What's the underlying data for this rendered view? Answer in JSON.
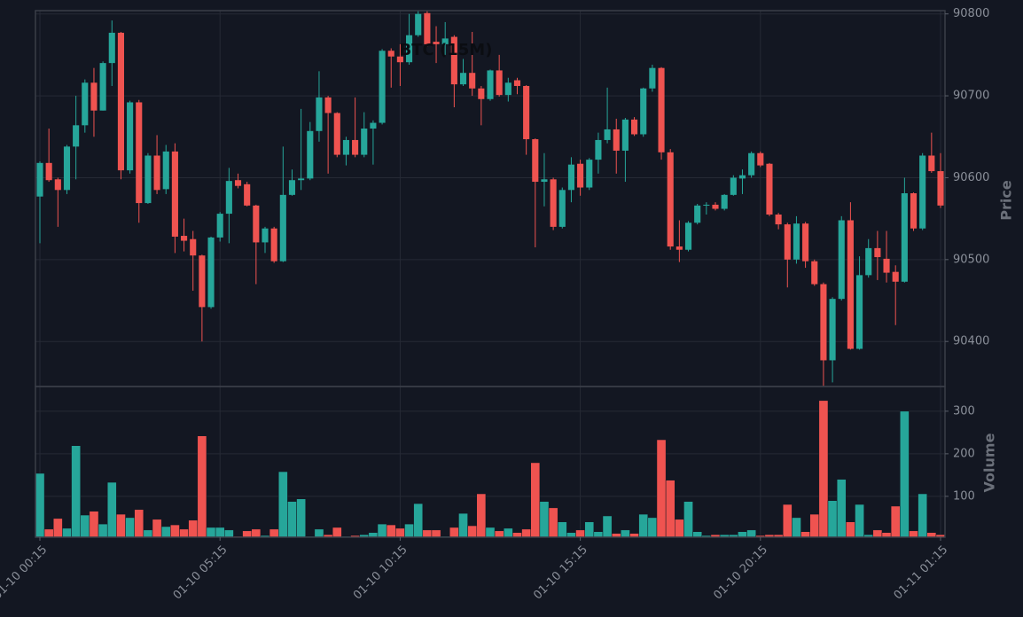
{
  "chart_data": {
    "type": "candlestick",
    "title": "BTC (15M)",
    "x": [
      "01-10 00:15",
      "01-10 00:30",
      "01-10 00:45",
      "01-10 01:00",
      "01-10 01:15",
      "01-10 01:30",
      "01-10 01:45",
      "01-10 02:00",
      "01-10 02:15",
      "01-10 02:30",
      "01-10 02:45",
      "01-10 03:00",
      "01-10 03:15",
      "01-10 03:30",
      "01-10 03:45",
      "01-10 04:00",
      "01-10 04:15",
      "01-10 04:30",
      "01-10 04:45",
      "01-10 05:00",
      "01-10 05:15",
      "01-10 05:30",
      "01-10 05:45",
      "01-10 06:00",
      "01-10 06:15",
      "01-10 06:30",
      "01-10 06:45",
      "01-10 07:00",
      "01-10 07:15",
      "01-10 07:30",
      "01-10 07:45",
      "01-10 08:00",
      "01-10 08:15",
      "01-10 08:30",
      "01-10 08:45",
      "01-10 09:00",
      "01-10 09:15",
      "01-10 09:30",
      "01-10 09:45",
      "01-10 10:00",
      "01-10 10:15",
      "01-10 10:30",
      "01-10 10:45",
      "01-10 11:00",
      "01-10 11:15",
      "01-10 11:30",
      "01-10 11:45",
      "01-10 12:00",
      "01-10 12:15",
      "01-10 12:30",
      "01-10 12:45",
      "01-10 13:00",
      "01-10 13:15",
      "01-10 13:30",
      "01-10 13:45",
      "01-10 14:00",
      "01-10 14:15",
      "01-10 14:30",
      "01-10 14:45",
      "01-10 15:00",
      "01-10 15:15",
      "01-10 15:30",
      "01-10 15:45",
      "01-10 16:00",
      "01-10 16:15",
      "01-10 16:30",
      "01-10 16:45",
      "01-10 17:00",
      "01-10 17:15",
      "01-10 17:30",
      "01-10 17:45",
      "01-10 18:00",
      "01-10 18:15",
      "01-10 18:30",
      "01-10 18:45",
      "01-10 19:00",
      "01-10 19:15",
      "01-10 19:30",
      "01-10 19:45",
      "01-10 20:00",
      "01-10 20:15",
      "01-10 20:30",
      "01-10 20:45",
      "01-10 21:00",
      "01-10 21:15",
      "01-10 21:30",
      "01-10 21:45",
      "01-10 22:00",
      "01-10 22:15",
      "01-10 22:30",
      "01-10 22:45",
      "01-10 23:00",
      "01-10 23:15",
      "01-10 23:30",
      "01-10 23:45",
      "01-11 00:00",
      "01-11 00:15",
      "01-11 00:30",
      "01-11 00:45",
      "01-11 01:00",
      "01-11 01:15"
    ],
    "open": [
      90577,
      90618,
      90598,
      90585,
      90638,
      90664,
      90716,
      90682,
      90740,
      90777,
      90609,
      90692,
      90569,
      90627,
      90586,
      90632,
      90529,
      90525,
      90505,
      90442,
      90527,
      90556,
      90597,
      90592,
      90566,
      90521,
      90538,
      90498,
      90579,
      90597,
      90599,
      90657,
      90698,
      90679,
      90628,
      90646,
      90628,
      90660,
      90667,
      90755,
      90748,
      90741,
      90774,
      90801,
      90766,
      90763,
      90772,
      90714,
      90728,
      90709,
      90696,
      90731,
      90701,
      90719,
      90712,
      90647,
      90595,
      90598,
      90540,
      90585,
      90617,
      90588,
      90622,
      90646,
      90659,
      90633,
      90671,
      90653,
      90709,
      90734,
      90631,
      90516,
      90512,
      90545,
      90566,
      90567,
      90562,
      90579,
      90599,
      90603,
      90630,
      90617,
      90555,
      90543,
      90500,
      90544,
      90498,
      90470,
      90377,
      90452,
      90548,
      90391,
      90481,
      90514,
      90501,
      90485,
      90473,
      90581,
      90538,
      90627,
      90608
    ],
    "high": [
      90620,
      90660,
      90600,
      90640,
      90700,
      90720,
      90734,
      90742,
      90792,
      90778,
      90694,
      90695,
      90630,
      90652,
      90640,
      90642,
      90550,
      90535,
      90506,
      90528,
      90558,
      90612,
      90605,
      90595,
      90567,
      90540,
      90540,
      90638,
      90610,
      90684,
      90668,
      90730,
      90700,
      90680,
      90650,
      90698,
      90680,
      90670,
      90757,
      90758,
      90763,
      90800,
      90804,
      90804,
      90785,
      90790,
      90774,
      90745,
      90778,
      90712,
      90732,
      90750,
      90722,
      90722,
      90713,
      90648,
      90630,
      90600,
      90588,
      90625,
      90622,
      90624,
      90655,
      90710,
      90672,
      90673,
      90674,
      90710,
      90738,
      90735,
      90635,
      90548,
      90547,
      90568,
      90570,
      90570,
      90580,
      90603,
      90610,
      90632,
      90632,
      90618,
      90557,
      90545,
      90553,
      90546,
      90500,
      90472,
      90454,
      90553,
      90570,
      90504,
      90525,
      90535,
      90535,
      90493,
      90600,
      90582,
      90630,
      90655,
      90630
    ],
    "low": [
      90520,
      90595,
      90540,
      90580,
      90598,
      90655,
      90650,
      90682,
      90712,
      90598,
      90605,
      90545,
      90568,
      90580,
      90580,
      90508,
      90510,
      90462,
      90400,
      90440,
      90522,
      90520,
      90587,
      90565,
      90470,
      90508,
      90496,
      90497,
      90578,
      90585,
      90597,
      90644,
      90605,
      90625,
      90615,
      90625,
      90625,
      90616,
      90665,
      90710,
      90712,
      90738,
      90772,
      90760,
      90740,
      90750,
      90686,
      90712,
      90700,
      90664,
      90694,
      90699,
      90693,
      90702,
      90628,
      90515,
      90565,
      90536,
      90538,
      90570,
      90578,
      90585,
      90605,
      90642,
      90605,
      90595,
      90651,
      90650,
      90705,
      90622,
      90512,
      90497,
      90510,
      90543,
      90555,
      90560,
      90560,
      90578,
      90580,
      90600,
      90613,
      90553,
      90537,
      90466,
      90495,
      90490,
      90468,
      90345,
      90350,
      90450,
      90390,
      90390,
      90478,
      90475,
      90472,
      90420,
      90472,
      90535,
      90536,
      90606,
      90563
    ],
    "close": [
      90618,
      90597,
      90585,
      90638,
      90664,
      90716,
      90682,
      90740,
      90777,
      90609,
      90692,
      90569,
      90627,
      90585,
      90632,
      90528,
      90523,
      90505,
      90442,
      90527,
      90556,
      90596,
      90590,
      90566,
      90521,
      90538,
      90498,
      90579,
      90597,
      90599,
      90657,
      90698,
      90679,
      90628,
      90646,
      90628,
      90660,
      90667,
      90755,
      90748,
      90741,
      90774,
      90800,
      90763,
      90763,
      90770,
      90714,
      90728,
      90709,
      90696,
      90731,
      90701,
      90716,
      90712,
      90647,
      90595,
      90598,
      90540,
      90585,
      90616,
      90588,
      90622,
      90646,
      90659,
      90633,
      90671,
      90653,
      90709,
      90734,
      90631,
      90516,
      90512,
      90545,
      90566,
      90567,
      90562,
      90579,
      90600,
      90603,
      90630,
      90615,
      90555,
      90543,
      90500,
      90544,
      90498,
      90470,
      90377,
      90452,
      90548,
      90391,
      90481,
      90514,
      90503,
      90484,
      90473,
      90581,
      90538,
      90627,
      90608,
      90566
    ],
    "volume": [
      154,
      23,
      48,
      25,
      219,
      56,
      65,
      35,
      133,
      58,
      50,
      69,
      21,
      46,
      29,
      33,
      23,
      44,
      242,
      27,
      27,
      21,
      6,
      19,
      23,
      8,
      23,
      158,
      88,
      94,
      6,
      23,
      10,
      27,
      6,
      8,
      10,
      15,
      35,
      33,
      25,
      35,
      83,
      21,
      21,
      6,
      27,
      60,
      31,
      106,
      27,
      19,
      25,
      15,
      23,
      179,
      88,
      73,
      40,
      15,
      21,
      40,
      17,
      54,
      13,
      21,
      13,
      58,
      50,
      233,
      138,
      46,
      88,
      17,
      8,
      10,
      10,
      10,
      17,
      21,
      8,
      10,
      10,
      81,
      50,
      17,
      58,
      325,
      90,
      140,
      40,
      81,
      10,
      21,
      15,
      77,
      300,
      19,
      106,
      15,
      10
    ],
    "up_color": "#26a69a",
    "down_color": "#ef5350",
    "ylabel": "Price",
    "ylim": [
      90345,
      90804
    ],
    "yticks": [
      90400,
      90500,
      90600,
      90700,
      90800
    ],
    "y2label": "Volume",
    "y2lim": [
      4,
      358
    ],
    "y2ticks": [
      100,
      200,
      300
    ],
    "xticks": [
      "01-10 00:15",
      "01-10 05:15",
      "01-10 10:15",
      "01-10 15:15",
      "01-10 20:15",
      "01-11 01:15"
    ],
    "grid": true
  }
}
